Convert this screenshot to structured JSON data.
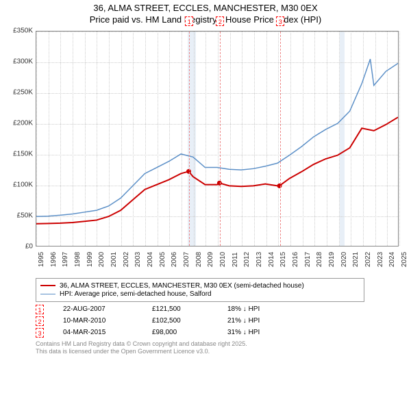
{
  "title": {
    "line1": "36, ALMA STREET, ECCLES, MANCHESTER, M30 0EX",
    "line2": "Price paid vs. HM Land Registry's House Price Index (HPI)"
  },
  "chart": {
    "type": "line",
    "ylim": [
      0,
      350000
    ],
    "ytick_step": 50000,
    "ytick_labels": [
      "£0",
      "£50K",
      "£100K",
      "£150K",
      "£200K",
      "£250K",
      "£300K",
      "£350K"
    ],
    "xlim": [
      1995,
      2025
    ],
    "xtick_step": 1,
    "xtick_labels": [
      "1995",
      "1996",
      "1997",
      "1998",
      "1999",
      "2000",
      "2001",
      "2002",
      "2003",
      "2004",
      "2005",
      "2006",
      "2007",
      "2008",
      "2009",
      "2010",
      "2011",
      "2012",
      "2013",
      "2014",
      "2015",
      "2016",
      "2017",
      "2018",
      "2019",
      "2020",
      "2021",
      "2022",
      "2023",
      "2024",
      "2025"
    ],
    "grid_color": "#cccccc",
    "background_color": "#ffffff",
    "plot_border_color": "#888888",
    "highlight_bands": [
      {
        "x_start": 2007.5,
        "x_end": 2008.2,
        "color": "#e8eff7"
      },
      {
        "x_start": 2020.1,
        "x_end": 2020.5,
        "color": "#e8eff7"
      }
    ],
    "series": [
      {
        "name": "red_price",
        "color": "#cc0000",
        "line_width": 2,
        "data": [
          [
            1995,
            36000
          ],
          [
            1996,
            36500
          ],
          [
            1997,
            37000
          ],
          [
            1998,
            38000
          ],
          [
            1999,
            40000
          ],
          [
            2000,
            42000
          ],
          [
            2001,
            48000
          ],
          [
            2002,
            58000
          ],
          [
            2003,
            75000
          ],
          [
            2004,
            92000
          ],
          [
            2005,
            100000
          ],
          [
            2006,
            108000
          ],
          [
            2007,
            118000
          ],
          [
            2007.64,
            121500
          ],
          [
            2008,
            113000
          ],
          [
            2009,
            100000
          ],
          [
            2010,
            100000
          ],
          [
            2010.19,
            102500
          ],
          [
            2011,
            98000
          ],
          [
            2012,
            97000
          ],
          [
            2013,
            98000
          ],
          [
            2014,
            101000
          ],
          [
            2015,
            98000
          ],
          [
            2015.17,
            98000
          ],
          [
            2016,
            110000
          ],
          [
            2017,
            121000
          ],
          [
            2018,
            133000
          ],
          [
            2019,
            142000
          ],
          [
            2020,
            148000
          ],
          [
            2021,
            160000
          ],
          [
            2022,
            192000
          ],
          [
            2023,
            188000
          ],
          [
            2024,
            198000
          ],
          [
            2025,
            210000
          ]
        ]
      },
      {
        "name": "blue_hpi",
        "color": "#5b8fc7",
        "line_width": 1.5,
        "data": [
          [
            1995,
            48000
          ],
          [
            1996,
            48500
          ],
          [
            1997,
            50000
          ],
          [
            1998,
            52000
          ],
          [
            1999,
            55000
          ],
          [
            2000,
            58000
          ],
          [
            2001,
            65000
          ],
          [
            2002,
            78000
          ],
          [
            2003,
            98000
          ],
          [
            2004,
            118000
          ],
          [
            2005,
            128000
          ],
          [
            2006,
            138000
          ],
          [
            2007,
            150000
          ],
          [
            2008,
            145000
          ],
          [
            2009,
            128000
          ],
          [
            2010,
            128000
          ],
          [
            2011,
            125000
          ],
          [
            2012,
            124000
          ],
          [
            2013,
            126000
          ],
          [
            2014,
            130000
          ],
          [
            2015,
            135000
          ],
          [
            2016,
            148000
          ],
          [
            2017,
            162000
          ],
          [
            2018,
            178000
          ],
          [
            2019,
            190000
          ],
          [
            2020,
            200000
          ],
          [
            2021,
            220000
          ],
          [
            2022,
            265000
          ],
          [
            2022.7,
            305000
          ],
          [
            2023,
            262000
          ],
          [
            2024,
            285000
          ],
          [
            2025,
            298000
          ]
        ]
      }
    ],
    "sale_markers": [
      {
        "num": "1",
        "x": 2007.64,
        "y": 121500
      },
      {
        "num": "2",
        "x": 2010.19,
        "y": 102500
      },
      {
        "num": "3",
        "x": 2015.17,
        "y": 98000
      }
    ]
  },
  "legend": {
    "items": [
      {
        "color": "#cc0000",
        "line_width": 2,
        "label": "36, ALMA STREET, ECCLES, MANCHESTER, M30 0EX (semi-detached house)"
      },
      {
        "color": "#5b8fc7",
        "line_width": 1.5,
        "label": "HPI: Average price, semi-detached house, Salford"
      }
    ]
  },
  "sales": [
    {
      "num": "1",
      "date": "22-AUG-2007",
      "price": "£121,500",
      "change": "18% ↓ HPI"
    },
    {
      "num": "2",
      "date": "10-MAR-2010",
      "price": "£102,500",
      "change": "21% ↓ HPI"
    },
    {
      "num": "3",
      "date": "04-MAR-2015",
      "price": "£98,000",
      "change": "31% ↓ HPI"
    }
  ],
  "footer": {
    "line1": "Contains HM Land Registry data © Crown copyright and database right 2025.",
    "line2": "This data is licensed under the Open Government Licence v3.0."
  }
}
